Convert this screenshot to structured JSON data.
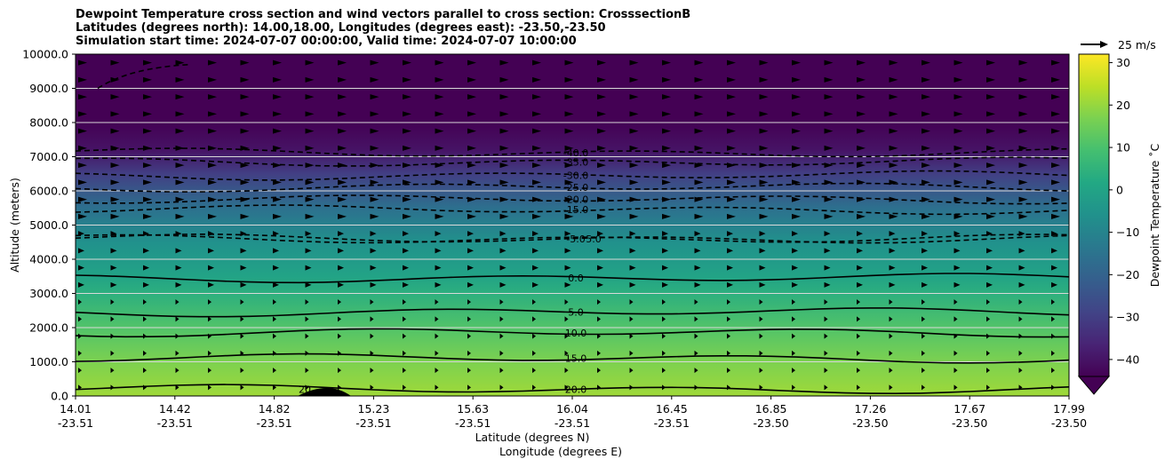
{
  "title": {
    "line1": "Dewpoint Temperature cross section and wind vectors parallel to cross section: CrosssectionB",
    "line2": "Latitudes (degrees north): 14.00,18.00, Longitudes (degrees east): -23.50,-23.50",
    "line3": "Simulation start time: 2024-07-07 00:00:00, Valid time: 2024-07-07 10:00:00"
  },
  "chart_data": {
    "type": "contour",
    "xlabel": "Latitude (degrees N)",
    "xlabel2": "Longitude (degrees E)",
    "ylabel": "Altitude (meters)",
    "ylim": [
      0,
      10000
    ],
    "y_ticks": [
      "0.0",
      "1000.0",
      "2000.0",
      "3000.0",
      "4000.0",
      "5000.0",
      "6000.0",
      "7000.0",
      "8000.0",
      "9000.0",
      "10000.0"
    ],
    "x_ticks": [
      {
        "lat": "14.01",
        "lon": "-23.51"
      },
      {
        "lat": "14.42",
        "lon": "-23.51"
      },
      {
        "lat": "14.82",
        "lon": "-23.51"
      },
      {
        "lat": "15.23",
        "lon": "-23.51"
      },
      {
        "lat": "15.63",
        "lon": "-23.51"
      },
      {
        "lat": "16.04",
        "lon": "-23.51"
      },
      {
        "lat": "16.45",
        "lon": "-23.51"
      },
      {
        "lat": "16.85",
        "lon": "-23.50"
      },
      {
        "lat": "17.26",
        "lon": "-23.50"
      },
      {
        "lat": "17.67",
        "lon": "-23.50"
      },
      {
        "lat": "17.99",
        "lon": "-23.50"
      }
    ],
    "grid": "horizontal",
    "colorbar": {
      "label": "Dewpoint Temperature ˚C",
      "ticks": [
        "−40",
        "−30",
        "−20",
        "−10",
        "0",
        "10",
        "20",
        "30"
      ],
      "range": [
        -44,
        32
      ],
      "extend": "min",
      "colormap": "viridis"
    },
    "contour_levels": [
      {
        "label": "-40.0",
        "altitude": 7120,
        "style": "dashed"
      },
      {
        "label": "-35.0",
        "altitude": 6850,
        "style": "dashed"
      },
      {
        "label": "-30.0",
        "altitude": 6450,
        "style": "dashed"
      },
      {
        "label": "-25.0",
        "altitude": 6100,
        "style": "dashed"
      },
      {
        "label": "-20.0",
        "altitude": 5750,
        "style": "dashed"
      },
      {
        "label": "-15.0",
        "altitude": 5450,
        "style": "dashed"
      },
      {
        "label": "-5.0",
        "altitude": 4600,
        "style": "dashed"
      },
      {
        "label": "5.0",
        "altitude": 4600,
        "style": "dashed"
      },
      {
        "label": "0.0",
        "altitude": 3450,
        "style": "solid"
      },
      {
        "label": "5.0",
        "altitude": 2450,
        "style": "solid"
      },
      {
        "label": "10.0",
        "altitude": 1850,
        "style": "solid"
      },
      {
        "label": "15.0",
        "altitude": 1100,
        "style": "solid"
      },
      {
        "label": "20.0",
        "altitude": 200,
        "style": "solid"
      },
      {
        "label": "20",
        "altitude": 300,
        "style": "solid"
      }
    ],
    "wind_reference": {
      "label": "25 m/s"
    }
  },
  "colors": {
    "viridis": [
      "#440154",
      "#482475",
      "#414487",
      "#355f8d",
      "#2a788e",
      "#21918c",
      "#22a884",
      "#44bf70",
      "#7ad151",
      "#bddf26",
      "#fde725"
    ]
  }
}
